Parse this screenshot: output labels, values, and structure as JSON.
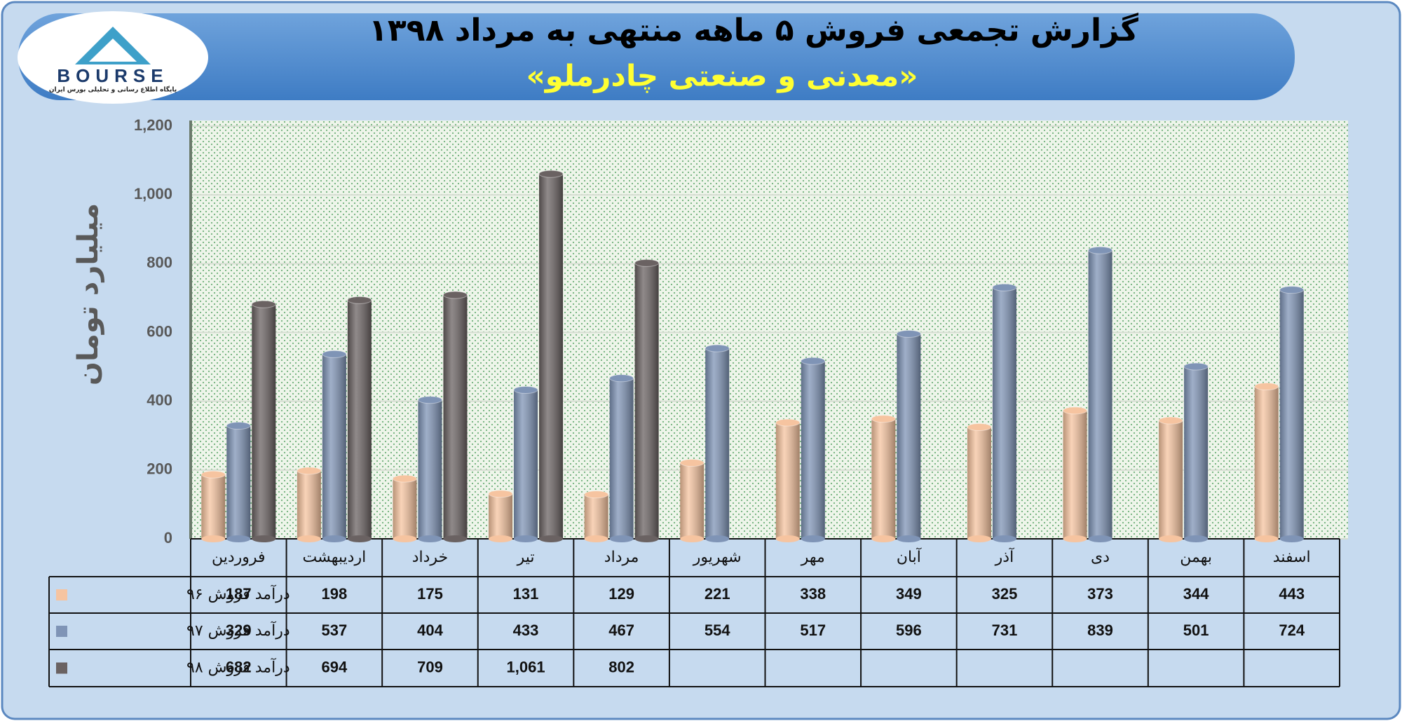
{
  "chart_data": {
    "type": "bar",
    "title": "گزارش تجمعی فروش ۵ ماهه منتهی به مرداد ۱۳۹۸",
    "subtitle": "«معدنی و صنعتی چادرملو»",
    "y_label": "میلیارد تومان",
    "logo": {
      "text": "BOURSE",
      "tagline": "پایگاه اطلاع رسانی و تحلیلی بورس ایران"
    },
    "categories": [
      "فروردین",
      "اردیبهشت",
      "خرداد",
      "تیر",
      "مرداد",
      "شهریور",
      "مهر",
      "آبان",
      "آذر",
      "دی",
      "بهمن",
      "اسفند"
    ],
    "series": [
      {
        "name": "درآمد فروش ۹۶",
        "color": "#f6c4a0",
        "values": [
          187,
          198,
          175,
          131,
          129,
          221,
          338,
          349,
          325,
          373,
          344,
          443
        ]
      },
      {
        "name": "درآمد فروش ۹۷",
        "color": "#7f94b6",
        "values": [
          329,
          537,
          404,
          433,
          467,
          554,
          517,
          596,
          731,
          839,
          501,
          724
        ]
      },
      {
        "name": "درآمد فروش ۹۸",
        "color": "#6a6262",
        "values": [
          682,
          694,
          709,
          1061,
          802,
          null,
          null,
          null,
          null,
          null,
          null,
          null
        ],
        "value_labels": [
          "682",
          "694",
          "709",
          "1,061",
          "802",
          null,
          null,
          null,
          null,
          null,
          null,
          null
        ]
      }
    ],
    "ylim": [
      0,
      1200
    ],
    "yticks": [
      0,
      200,
      400,
      600,
      800,
      {
        "value": 1000,
        "label": "1,000"
      },
      {
        "value": 1200,
        "label": "1,200"
      }
    ],
    "grid": true
  }
}
